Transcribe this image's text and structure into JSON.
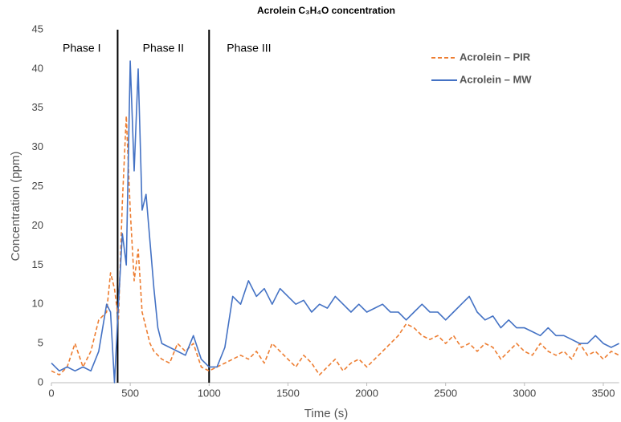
{
  "chart_data": {
    "type": "line",
    "title": "Acrolein C₃H₄O concentration",
    "x_label": "Time (s)",
    "y_label": "Concentration (ppm)",
    "xlim": [
      0,
      3600
    ],
    "ylim": [
      0,
      45
    ],
    "xticks": [
      0,
      500,
      1000,
      1500,
      2000,
      2500,
      3000,
      3500
    ],
    "yticks": [
      0,
      5,
      10,
      15,
      20,
      25,
      30,
      35,
      40,
      45
    ],
    "grid": false,
    "legend": "upper right",
    "phase_lines": [
      420,
      1000
    ],
    "phase_labels": [
      "Phase I",
      "Phase II",
      "Phase III"
    ],
    "x": [
      0,
      50,
      100,
      150,
      200,
      250,
      300,
      350,
      375,
      400,
      425,
      450,
      475,
      500,
      525,
      550,
      575,
      600,
      625,
      650,
      675,
      700,
      750,
      800,
      850,
      900,
      950,
      1000,
      1050,
      1100,
      1150,
      1200,
      1250,
      1300,
      1350,
      1400,
      1450,
      1500,
      1550,
      1600,
      1650,
      1700,
      1750,
      1800,
      1850,
      1900,
      1950,
      2000,
      2050,
      2100,
      2150,
      2200,
      2250,
      2300,
      2350,
      2400,
      2450,
      2500,
      2550,
      2600,
      2650,
      2700,
      2750,
      2800,
      2850,
      2900,
      2950,
      3000,
      3050,
      3100,
      3150,
      3200,
      3250,
      3300,
      3350,
      3400,
      3450,
      3500,
      3550,
      3600
    ],
    "series": [
      {
        "name": "Acrolein – PIR",
        "color": "#ed7d31",
        "line_style": "dashed",
        "values": [
          1.5,
          1,
          2,
          5,
          2,
          4,
          8,
          9,
          14,
          12,
          8,
          23,
          34,
          22,
          13,
          17,
          9,
          7,
          5,
          4,
          3.5,
          3,
          2.5,
          5,
          4,
          5,
          2,
          1.5,
          2,
          2.5,
          3,
          3.5,
          3,
          4,
          2.5,
          5,
          4,
          3,
          2,
          3.5,
          2.5,
          1,
          2,
          3,
          1.5,
          2.5,
          3,
          2,
          3,
          4,
          5,
          6,
          7.5,
          7,
          6,
          5.5,
          6,
          5,
          6,
          4.5,
          5,
          4,
          5,
          4.5,
          3,
          4,
          5,
          4,
          3.5,
          5,
          4,
          3.5,
          4,
          3,
          5,
          3.5,
          4,
          3,
          4,
          3.5
        ]
      },
      {
        "name": "Acrolein – MW",
        "color": "#4472c4",
        "line_style": "solid",
        "values": [
          2.5,
          1.5,
          2,
          1.5,
          2,
          1.5,
          4,
          10,
          9,
          0,
          10,
          19,
          15,
          41,
          27,
          40,
          22,
          24,
          18,
          12,
          7,
          5,
          4.5,
          4,
          3.5,
          6,
          3,
          2,
          2,
          4.5,
          11,
          10,
          13,
          11,
          12,
          10,
          12,
          11,
          10,
          10.5,
          9,
          10,
          9.5,
          11,
          10,
          9,
          10,
          9,
          9.5,
          10,
          9,
          9,
          8,
          9,
          10,
          9,
          9,
          8,
          9,
          10,
          11,
          9,
          8,
          8.5,
          7,
          8,
          7,
          7,
          6.5,
          6,
          7,
          6,
          6,
          5.5,
          5,
          5,
          6,
          5,
          4.5,
          5
        ]
      }
    ]
  }
}
